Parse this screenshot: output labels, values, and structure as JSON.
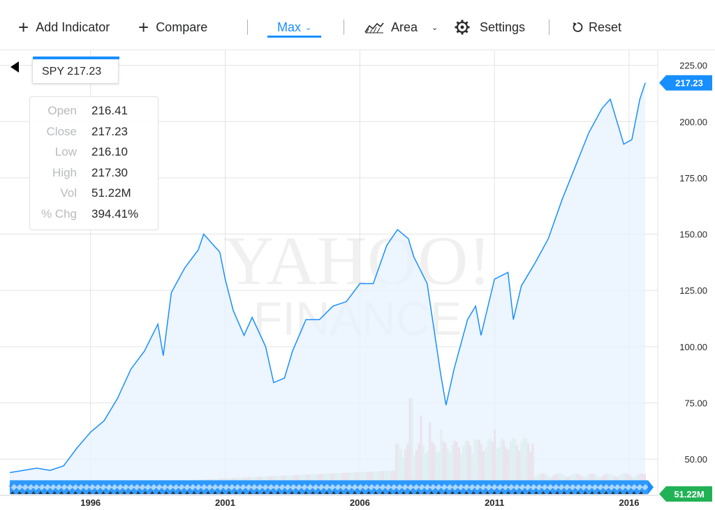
{
  "toolbar": {
    "add_indicator": {
      "icon": "plus-icon",
      "label": "Add Indicator"
    },
    "compare": {
      "icon": "plus-icon",
      "label": "Compare"
    },
    "range": {
      "label": "Max",
      "chevron": "chevron-down-icon"
    },
    "chart_type": {
      "icon": "area-chart-icon",
      "label": "Area",
      "chevron": "chevron-down-icon"
    },
    "settings": {
      "icon": "gear-icon",
      "label": "Settings"
    },
    "reset": {
      "icon": "reset-icon",
      "label": "Reset"
    },
    "accent_color": "#188fff"
  },
  "symbol": {
    "label": "SPY 217.23"
  },
  "info": [
    {
      "key": "Open",
      "value": "216.41"
    },
    {
      "key": "Close",
      "value": "217.23"
    },
    {
      "key": "Low",
      "value": "216.10"
    },
    {
      "key": "High",
      "value": "217.30"
    },
    {
      "key": "Vol",
      "value": "51.22M"
    },
    {
      "key": "% Chg",
      "value": "394.41%"
    }
  ],
  "watermark": {
    "line1": "YAHOO!",
    "line2": "FINANCE"
  },
  "chart_data": {
    "type": "area",
    "xlabel": "",
    "ylabel": "",
    "ylim": [
      37,
      228
    ],
    "xlim": [
      1993.0,
      2016.7
    ],
    "x_ticks": [
      1996,
      2001,
      2006,
      2011,
      2016
    ],
    "y_ticks": [
      "50.00",
      "75.00",
      "100.00",
      "125.00",
      "150.00",
      "175.00",
      "200.00",
      "225.00"
    ],
    "line_color": "#188fff",
    "fill_color": "#e7f1fd",
    "last_price_label": "217.23",
    "last_price": 217.23,
    "volume_label": "51.22M",
    "volume_label_color": "#21b256",
    "grid": true,
    "series": [
      {
        "points": [
          [
            1993.0,
            44
          ],
          [
            1993.5,
            45
          ],
          [
            1994.0,
            46
          ],
          [
            1994.5,
            45
          ],
          [
            1995.0,
            47
          ],
          [
            1995.5,
            55
          ],
          [
            1996.0,
            62
          ],
          [
            1996.5,
            67
          ],
          [
            1997.0,
            77
          ],
          [
            1997.5,
            90
          ],
          [
            1998.0,
            98
          ],
          [
            1998.5,
            110
          ],
          [
            1998.7,
            96
          ],
          [
            1999.0,
            124
          ],
          [
            1999.5,
            135
          ],
          [
            2000.0,
            143
          ],
          [
            2000.2,
            150
          ],
          [
            2000.5,
            146
          ],
          [
            2000.8,
            142
          ],
          [
            2001.0,
            130
          ],
          [
            2001.3,
            116
          ],
          [
            2001.7,
            105
          ],
          [
            2002.0,
            113
          ],
          [
            2002.5,
            100
          ],
          [
            2002.8,
            84
          ],
          [
            2003.2,
            86
          ],
          [
            2003.5,
            98
          ],
          [
            2004.0,
            112
          ],
          [
            2004.5,
            112
          ],
          [
            2005.0,
            118
          ],
          [
            2005.5,
            120
          ],
          [
            2006.0,
            128
          ],
          [
            2006.5,
            128
          ],
          [
            2007.0,
            145
          ],
          [
            2007.4,
            152
          ],
          [
            2007.8,
            148
          ],
          [
            2008.0,
            140
          ],
          [
            2008.5,
            128
          ],
          [
            2009.0,
            88
          ],
          [
            2009.2,
            74
          ],
          [
            2009.5,
            90
          ],
          [
            2010.0,
            112
          ],
          [
            2010.3,
            118
          ],
          [
            2010.5,
            105
          ],
          [
            2011.0,
            130
          ],
          [
            2011.5,
            133
          ],
          [
            2011.7,
            112
          ],
          [
            2012.0,
            127
          ],
          [
            2012.5,
            137
          ],
          [
            2013.0,
            148
          ],
          [
            2013.5,
            165
          ],
          [
            2014.0,
            180
          ],
          [
            2014.5,
            195
          ],
          [
            2015.0,
            206
          ],
          [
            2015.3,
            210
          ],
          [
            2015.6,
            198
          ],
          [
            2015.8,
            190
          ],
          [
            2016.1,
            192
          ],
          [
            2016.4,
            210
          ],
          [
            2016.6,
            217.23
          ]
        ]
      }
    ],
    "volume_bars": {
      "up_color": "#c5eccd",
      "down_color": "#f4b7c0",
      "x_range": [
        1993.0,
        2016.6
      ],
      "spikes": [
        {
          "x": 2007.9,
          "v": 0.85,
          "up": false
        },
        {
          "x": 2008.3,
          "v": 0.68,
          "up": false
        },
        {
          "x": 2008.6,
          "v": 0.62,
          "up": true
        },
        {
          "x": 2009.0,
          "v": 0.55,
          "up": false
        },
        {
          "x": 2010.3,
          "v": 0.45,
          "up": false
        },
        {
          "x": 2011.0,
          "v": 0.55,
          "up": false
        },
        {
          "x": 2011.2,
          "v": 0.38,
          "up": true
        }
      ]
    }
  }
}
